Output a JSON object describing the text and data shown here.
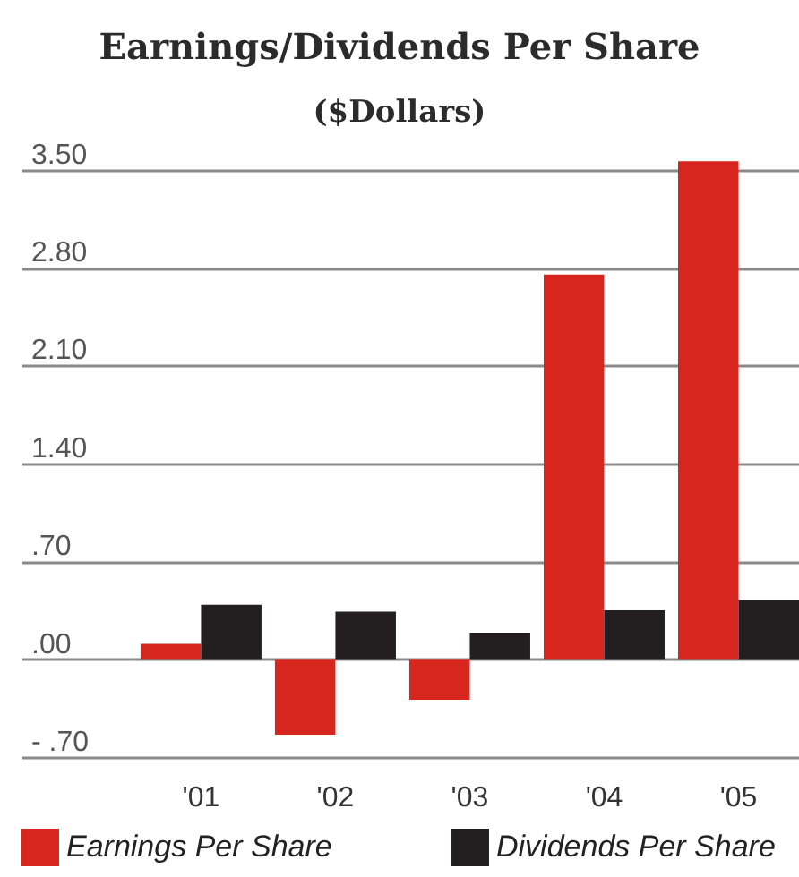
{
  "chart_data": {
    "type": "bar",
    "title": "Earnings/Dividends Per Share",
    "subtitle": "($Dollars)",
    "categories": [
      "'01",
      "'02",
      "'03",
      "'04",
      "'05"
    ],
    "series": [
      {
        "name": "Earnings Per Share",
        "color": "#d7261e",
        "values": [
          0.11,
          -0.54,
          -0.29,
          2.75,
          3.56
        ]
      },
      {
        "name": "Dividends Per Share",
        "color": "#231f20",
        "values": [
          0.39,
          0.34,
          0.19,
          0.35,
          0.42
        ]
      }
    ],
    "ylim": [
      -0.7,
      3.6
    ],
    "yticks": [
      {
        "value": -0.7,
        "label": "- .70"
      },
      {
        "value": 0,
        "label": ".00"
      },
      {
        "value": 0.7,
        "label": ".70"
      },
      {
        "value": 1.4,
        "label": "1.40"
      },
      {
        "value": 2.1,
        "label": "2.10"
      },
      {
        "value": 2.8,
        "label": "2.80"
      },
      {
        "value": 3.5,
        "label": "3.50"
      }
    ],
    "grid": "y",
    "legend": "bottom"
  }
}
